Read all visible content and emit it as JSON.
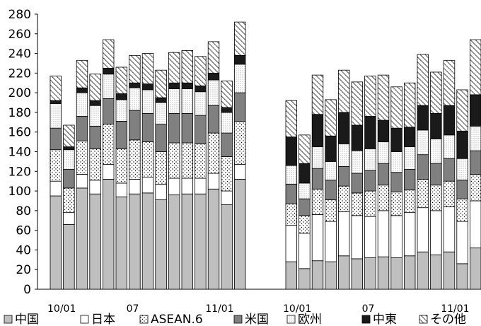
{
  "chart_data": {
    "type": "bar",
    "stacked": true,
    "ylim": [
      0,
      280
    ],
    "yticks": [
      0,
      20,
      40,
      60,
      80,
      100,
      120,
      140,
      160,
      180,
      200,
      220,
      240,
      260,
      280
    ],
    "grid": false,
    "legend_position": "bottom",
    "series": [
      {
        "name": "中国",
        "color": "#bfbfbf",
        "pattern": "solid-gray"
      },
      {
        "name": "日本",
        "color": "#ffffff",
        "pattern": "white"
      },
      {
        "name": "ASEAN.6",
        "color": "#ffffff",
        "pattern": "dots"
      },
      {
        "name": "米国",
        "color": "#808080",
        "pattern": "solid-darkgray"
      },
      {
        "name": "欧州",
        "color": "#ffffff",
        "pattern": "fine-dots"
      },
      {
        "name": "中東",
        "color": "#1a1a1a",
        "pattern": "solid-black"
      },
      {
        "name": "その他",
        "color": "#ffffff",
        "pattern": "hatch"
      }
    ],
    "groups": [
      {
        "x_labels": [
          {
            "index": 0,
            "text": "10/01"
          },
          {
            "index": 6,
            "text": "07"
          },
          {
            "index": 12,
            "text": "11/01"
          }
        ],
        "bars": [
          [
            95,
            15,
            32,
            22,
            25,
            3,
            25
          ],
          [
            66,
            12,
            25,
            19,
            20,
            3,
            22
          ],
          [
            103,
            14,
            34,
            25,
            24,
            5,
            28
          ],
          [
            97,
            14,
            32,
            23,
            21,
            5,
            27
          ],
          [
            112,
            15,
            41,
            26,
            25,
            6,
            29
          ],
          [
            94,
            14,
            35,
            28,
            22,
            6,
            27
          ],
          [
            97,
            15,
            40,
            30,
            23,
            5,
            28
          ],
          [
            98,
            16,
            36,
            29,
            24,
            6,
            31
          ],
          [
            91,
            16,
            33,
            28,
            22,
            5,
            28
          ],
          [
            96,
            17,
            36,
            30,
            25,
            6,
            31
          ],
          [
            97,
            16,
            36,
            30,
            25,
            6,
            33
          ],
          [
            97,
            16,
            35,
            29,
            24,
            6,
            30
          ],
          [
            102,
            16,
            41,
            28,
            26,
            7,
            32
          ],
          [
            86,
            14,
            35,
            24,
            21,
            5,
            27
          ],
          [
            112,
            15,
            44,
            29,
            29,
            9,
            34
          ]
        ]
      },
      {
        "x_labels": [
          {
            "index": 0,
            "text": "10/01"
          },
          {
            "index": 6,
            "text": "07"
          },
          {
            "index": 12,
            "text": "11/01"
          }
        ],
        "bars": [
          [
            28,
            37,
            22,
            20,
            19,
            29,
            37
          ],
          [
            21,
            36,
            18,
            17,
            16,
            20,
            29
          ],
          [
            29,
            47,
            26,
            21,
            22,
            33,
            40
          ],
          [
            28,
            41,
            22,
            20,
            19,
            26,
            37
          ],
          [
            34,
            45,
            26,
            20,
            23,
            32,
            43
          ],
          [
            31,
            44,
            23,
            20,
            23,
            26,
            44
          ],
          [
            32,
            42,
            26,
            21,
            22,
            33,
            41
          ],
          [
            33,
            47,
            26,
            22,
            22,
            22,
            46
          ],
          [
            32,
            43,
            24,
            20,
            21,
            24,
            42
          ],
          [
            34,
            44,
            23,
            21,
            23,
            20,
            45
          ],
          [
            38,
            45,
            29,
            25,
            25,
            25,
            52
          ],
          [
            35,
            45,
            26,
            22,
            25,
            26,
            42
          ],
          [
            38,
            46,
            26,
            23,
            24,
            30,
            46
          ],
          [
            26,
            43,
            23,
            19,
            22,
            28,
            42
          ],
          [
            42,
            48,
            27,
            24,
            25,
            32,
            56
          ]
        ]
      }
    ]
  }
}
